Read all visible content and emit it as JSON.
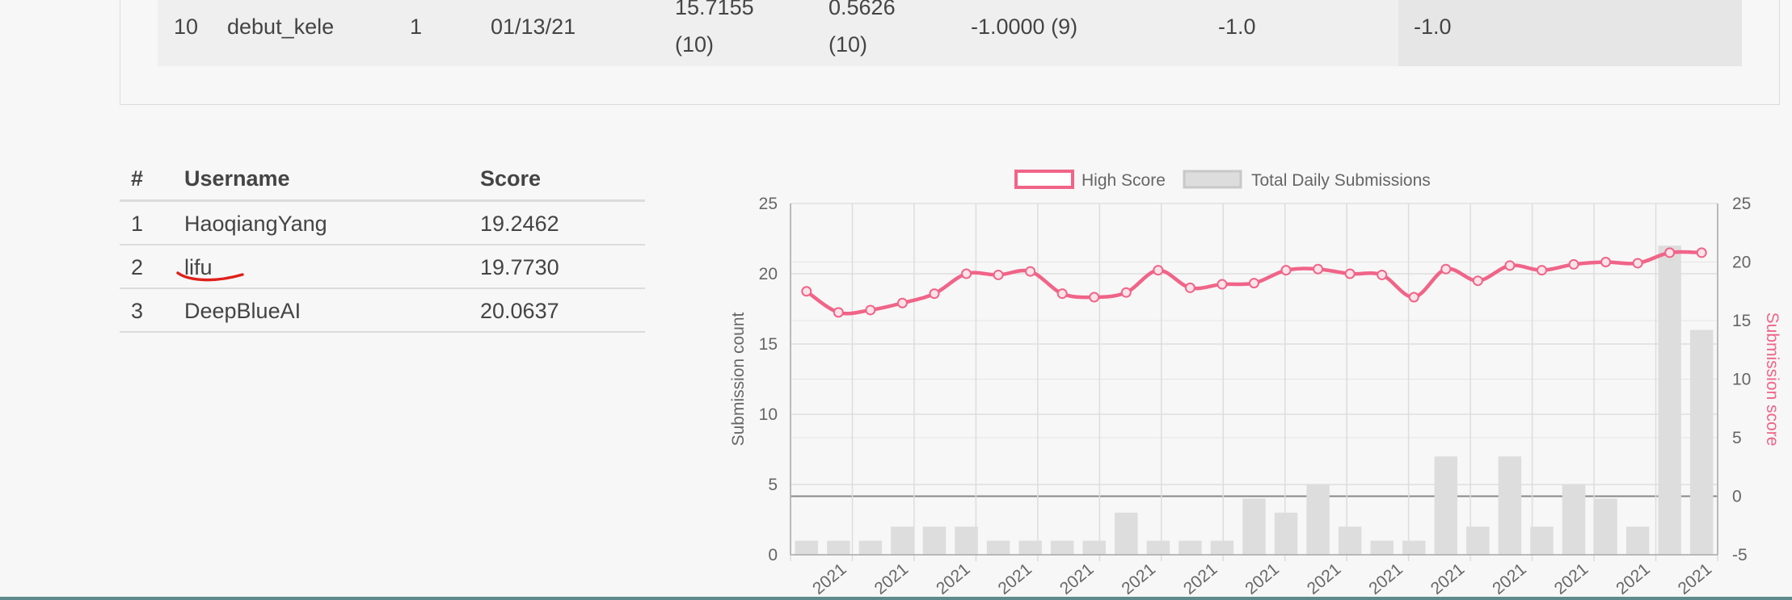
{
  "top_table": {
    "row": {
      "rank": "10",
      "username": "debut_kele",
      "entries": "1",
      "date": "01/13/21",
      "score1_value": "15.7155",
      "score1_rank": "(10)",
      "score2_value": "0.5626",
      "score2_rank": "(10)",
      "score3": "-1.0000 (9)",
      "score4": "-1.0",
      "score5": "-1.0"
    }
  },
  "leaderboard": {
    "headers": {
      "rank": "#",
      "username": "Username",
      "score": "Score"
    },
    "rows": [
      {
        "rank": "1",
        "username": "HaoqiangYang",
        "score": "19.2462"
      },
      {
        "rank": "2",
        "username": "lifu",
        "score": "19.7730"
      },
      {
        "rank": "3",
        "username": "DeepBlueAI",
        "score": "20.0637"
      }
    ]
  },
  "annotation": {
    "underline_color": "#e0201a"
  },
  "chart_data": {
    "type": "bar+line",
    "legend": [
      {
        "name": "High Score",
        "color": "#f06488"
      },
      {
        "name": "Total Daily Submissions",
        "color": "#dddddd"
      }
    ],
    "legend_position": "top",
    "ylabel_left": "Submission count",
    "ylabel_right": "Submission score",
    "ylim_left": [
      0,
      25
    ],
    "ylim_right": [
      -5,
      25
    ],
    "yticks_left": [
      0,
      5,
      10,
      15,
      20,
      25
    ],
    "yticks_right": [
      -5,
      0,
      5,
      10,
      15,
      20,
      25
    ],
    "x_tick_labels": [
      "2021",
      "2021",
      "2021",
      "2021",
      "2021",
      "2021",
      "2021",
      "2021",
      "2021",
      "2021",
      "2021",
      "2021",
      "2021",
      "2021",
      "2021"
    ],
    "grid": true,
    "series": [
      {
        "name": "Total Daily Submissions",
        "axis": "left",
        "values": [
          1,
          1,
          1,
          2,
          2,
          2,
          1,
          1,
          1,
          1,
          3,
          1,
          1,
          1,
          4,
          3,
          5,
          2,
          1,
          1,
          7,
          2,
          7,
          2,
          5,
          4,
          2,
          22,
          16
        ]
      },
      {
        "name": "High Score",
        "axis": "right",
        "values": [
          17.5,
          15.7,
          15.9,
          16.5,
          17.3,
          19.0,
          18.9,
          19.2,
          17.3,
          17.0,
          17.4,
          19.3,
          17.8,
          18.1,
          18.2,
          19.3,
          19.4,
          19.0,
          18.9,
          17.0,
          19.4,
          18.4,
          19.7,
          19.3,
          19.8,
          20.0,
          19.9,
          20.8,
          20.8
        ]
      }
    ]
  }
}
